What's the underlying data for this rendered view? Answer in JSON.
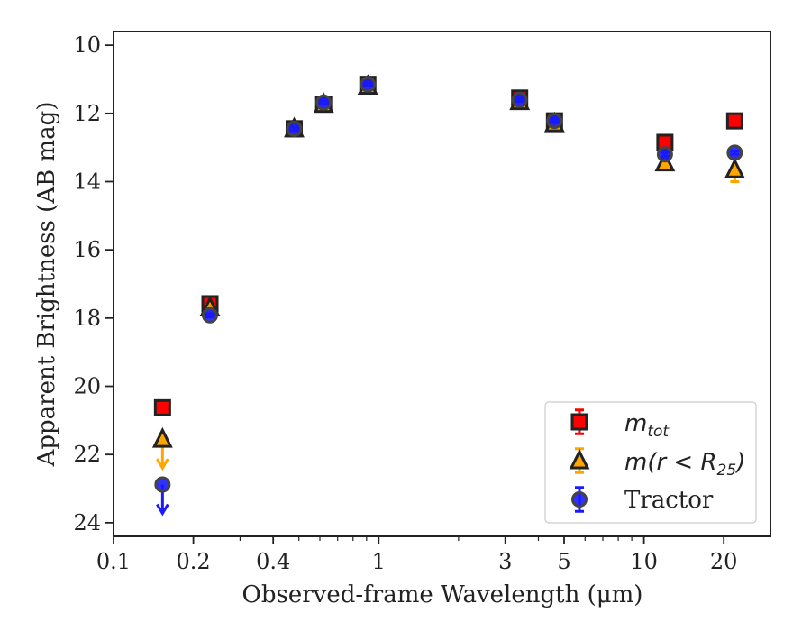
{
  "chart_data": {
    "type": "scatter",
    "xlabel": "Observed-frame Wavelength (μm)",
    "ylabel": "Apparent Brightness (AB mag)",
    "xscale": "log",
    "xlim": [
      0.1,
      30
    ],
    "ylim": [
      24.4,
      9.6
    ],
    "y_inverted": true,
    "x_ticks": [
      0.1,
      0.2,
      0.4,
      1,
      3,
      5,
      10,
      20
    ],
    "x_tick_labels": [
      "0.1",
      "0.2",
      "0.4",
      "1",
      "3",
      "5",
      "10",
      "20"
    ],
    "y_ticks": [
      10,
      12,
      14,
      16,
      18,
      20,
      22,
      24
    ],
    "y_tick_labels": [
      "10",
      "12",
      "14",
      "16",
      "18",
      "20",
      "22",
      "24"
    ],
    "grid": false,
    "legend_position": "bottom-right",
    "legend": {
      "mtot_main": "m",
      "mtot_sub": "tot",
      "mr25_main": "m(r < R",
      "mr25_sub": "25",
      "mr25_close": ")",
      "tractor": "Tractor"
    },
    "series": [
      {
        "name": "m_tot",
        "marker": "square",
        "color": "#ff0000",
        "edge": "#222222",
        "points": [
          {
            "x": 0.153,
            "y": 20.63,
            "err": 0.08
          },
          {
            "x": 0.231,
            "y": 17.58,
            "err": 0.08
          },
          {
            "x": 0.48,
            "y": 12.45,
            "err": 0.05
          },
          {
            "x": 0.62,
            "y": 11.73,
            "err": 0.05
          },
          {
            "x": 0.91,
            "y": 11.15,
            "err": 0.05
          },
          {
            "x": 3.4,
            "y": 11.55,
            "err": 0.15
          },
          {
            "x": 4.6,
            "y": 12.22,
            "err": 0.08
          },
          {
            "x": 12.0,
            "y": 12.85,
            "err": 0.08
          },
          {
            "x": 22.0,
            "y": 12.22,
            "err": 0.08
          }
        ]
      },
      {
        "name": "m(r < R_25)",
        "marker": "triangle",
        "color": "#ffa500",
        "edge": "#222222",
        "points": [
          {
            "x": 0.153,
            "y": 21.55,
            "err": 0.0,
            "upper_limit": true
          },
          {
            "x": 0.231,
            "y": 17.7,
            "err": 0.08
          },
          {
            "x": 0.48,
            "y": 12.45,
            "err": 0.05
          },
          {
            "x": 0.62,
            "y": 11.73,
            "err": 0.05
          },
          {
            "x": 0.91,
            "y": 11.2,
            "err": 0.05
          },
          {
            "x": 3.4,
            "y": 11.65,
            "err": 0.1
          },
          {
            "x": 4.6,
            "y": 12.3,
            "err": 0.08
          },
          {
            "x": 12.0,
            "y": 13.45,
            "err": 0.1
          },
          {
            "x": 22.0,
            "y": 13.65,
            "err": 0.35
          }
        ]
      },
      {
        "name": "Tractor",
        "marker": "circle",
        "color": "#1a1aff",
        "edge": "#444444",
        "points": [
          {
            "x": 0.153,
            "y": 22.88,
            "err": 0.0,
            "upper_limit": true
          },
          {
            "x": 0.231,
            "y": 17.92,
            "err": 0.05
          },
          {
            "x": 0.48,
            "y": 12.45,
            "err": 0.05
          },
          {
            "x": 0.62,
            "y": 11.68,
            "err": 0.05
          },
          {
            "x": 0.91,
            "y": 11.15,
            "err": 0.05
          },
          {
            "x": 3.4,
            "y": 11.6,
            "err": 0.05
          },
          {
            "x": 4.6,
            "y": 12.22,
            "err": 0.05
          },
          {
            "x": 12.0,
            "y": 13.2,
            "err": 0.05
          },
          {
            "x": 22.0,
            "y": 13.15,
            "err": 0.05
          }
        ]
      }
    ]
  }
}
